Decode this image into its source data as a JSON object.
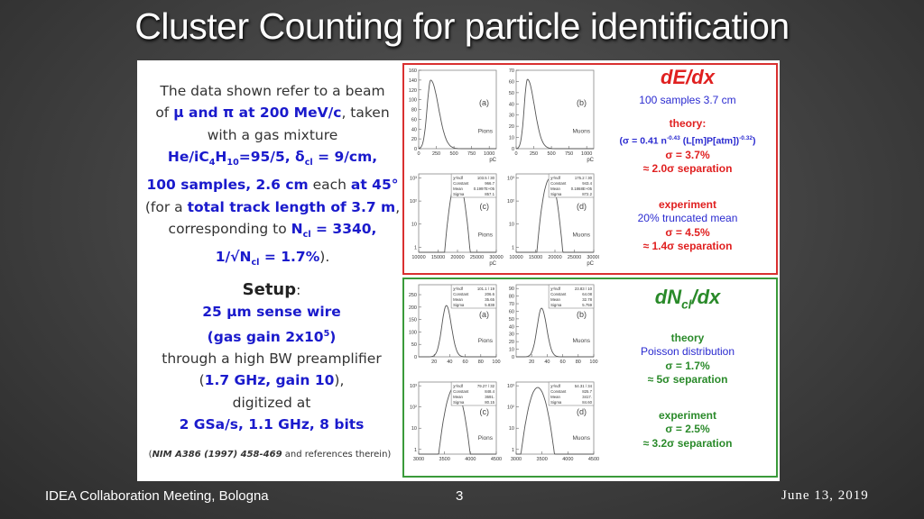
{
  "title": "Cluster Counting for particle identification",
  "intro": {
    "l1": "The data shown refer to a beam",
    "l2a": "of ",
    "l2b": "μ and π at 200 MeV/c",
    ",": ",",
    "l2c": ", taken",
    "l3": "with a gas mixture",
    "l4": "He/iC",
    "l4s1": "4",
    "l4b": "H",
    "l4s2": "10",
    "l4c": "=95/5, δ",
    "l4s3": "cl",
    "l4d": " = 9/cm,",
    "l5a": "100 samples, 2.6 cm",
    "l5b": " each ",
    "l5c": "at 45°",
    "l6a": "(for a ",
    "l6b": "total track length of 3.7 m",
    "l6c": ",",
    "l7a": "corresponding to ",
    "l7b": "N",
    "l7s": "cl",
    "l7c": " = 3340,",
    "l8a": "1/√N",
    "l8s": "cl",
    "l8b": " = 1.7%",
    "l8c": ")."
  },
  "setup": {
    "heading": "Setup",
    "colon": ":",
    "l1": "25 µm sense wire",
    "l2a": "(gas gain 2x10",
    "l2s": "5",
    "l2b": ")",
    "l3": "through a high BW preamplifier",
    "l4a": "(",
    "l4b": "1.7 GHz, gain 10",
    "l4c": "),",
    "l5": "digitized at",
    "l6": "2 GSa/s, 1.1 GHz, 8 bits"
  },
  "reference": {
    "bold": "NIM A386 (1997) 458-469",
    "rest": " and references therein)",
    "open": "("
  },
  "dedx": {
    "heading": "dE/dx",
    "samples": "100 samples 3.7 cm",
    "theory": "theory:",
    "formula": "(σ = 0.41 n",
    "f_sup1": "-0.43",
    "f_mid": " (L[m]P[atm])",
    "f_sup2": "-0.32",
    "f_end": ")",
    "sigma": "σ = 3.7%",
    "sep": "≈ 2.0σ separation",
    "experiment": "experiment",
    "method": "20% truncated mean",
    "exp_sigma": "σ = 4.5%",
    "exp_sep": "≈ 1.4σ separation"
  },
  "dncl": {
    "heading_a": "dN",
    "heading_sub": "cl",
    "heading_b": "/dx",
    "theory": "theory",
    "dist": "Poisson distribution",
    "sigma": "σ = 1.7%",
    "sep": "≈ 5σ separation",
    "experiment": "experiment",
    "exp_sigma": "σ = 2.5%",
    "exp_sep": "≈ 3.2σ separation"
  },
  "colors": {
    "red": "#d93030",
    "green": "#3a9a3a",
    "blue": "#1a1acc"
  },
  "plots": {
    "dedx": [
      {
        "label": "(a)",
        "particle": "Pions",
        "xunit": "pC",
        "log": false,
        "xlim": [
          0,
          1100
        ],
        "ylim": [
          0,
          160
        ],
        "xticks": [
          "0",
          "250",
          "500",
          "750",
          "1000"
        ],
        "xtickv": [
          0,
          250,
          500,
          750,
          1000
        ],
        "yticks": [
          "0",
          "20",
          "40",
          "60",
          "80",
          "100",
          "120",
          "140",
          "160"
        ],
        "ytickv": [
          0,
          20,
          40,
          60,
          80,
          100,
          120,
          140,
          160
        ],
        "peak": {
          "mu": 170,
          "sl": 50,
          "sr": 110,
          "h": 140
        },
        "stats": null
      },
      {
        "label": "(b)",
        "particle": "Muons",
        "xunit": "pC",
        "log": false,
        "xlim": [
          0,
          1100
        ],
        "ylim": [
          0,
          70
        ],
        "xticks": [
          "0",
          "250",
          "500",
          "750",
          "1000"
        ],
        "xtickv": [
          0,
          250,
          500,
          750,
          1000
        ],
        "yticks": [
          "0",
          "10",
          "20",
          "30",
          "40",
          "50",
          "60",
          "70"
        ],
        "ytickv": [
          0,
          10,
          20,
          30,
          40,
          50,
          60,
          70
        ],
        "peak": {
          "mu": 160,
          "sl": 45,
          "sr": 100,
          "h": 62
        },
        "stats": null
      },
      {
        "label": "(c)",
        "particle": "Pions",
        "xunit": "pC",
        "log": true,
        "xlim": [
          10000,
          30000
        ],
        "ylim": [
          0.6,
          1500
        ],
        "xticks": [
          "10000",
          "15000",
          "20000",
          "25000",
          "30000"
        ],
        "xtickv": [
          10000,
          15000,
          20000,
          25000,
          30000
        ],
        "yticks": [
          "1",
          "10",
          "10²",
          "10³"
        ],
        "ytickv": [
          1,
          10,
          100,
          1000
        ],
        "peak": {
          "mu": 19970,
          "sl": 857,
          "sr": 857,
          "h": 966.7
        },
        "stats": [
          [
            "χ²/ndf",
            "103.5 / 30"
          ],
          [
            "Constant",
            "966.7"
          ],
          [
            "Mean",
            "0.1997E+05"
          ],
          [
            "Sigma",
            "857.1"
          ]
        ]
      },
      {
        "label": "(d)",
        "particle": "Muons",
        "xunit": "pC",
        "log": true,
        "xlim": [
          10000,
          30000
        ],
        "ylim": [
          0.6,
          1500
        ],
        "xticks": [
          "10000",
          "15000",
          "20000",
          "25000",
          "30000"
        ],
        "xtickv": [
          10000,
          15000,
          20000,
          25000,
          30000
        ],
        "yticks": [
          "1",
          "10",
          "10²",
          "10³"
        ],
        "ytickv": [
          1,
          10,
          100,
          1000
        ],
        "peak": {
          "mu": 18680,
          "sl": 872,
          "sr": 872,
          "h": 943.4
        },
        "stats": [
          [
            "χ²/ndf",
            "175.2 / 30"
          ],
          [
            "Constant",
            "943.4"
          ],
          [
            "Mean",
            "0.1868E+05"
          ],
          [
            "Sigma",
            "872.2"
          ]
        ]
      }
    ],
    "dncl": [
      {
        "label": "(a)",
        "particle": "Pions",
        "xunit": "",
        "log": false,
        "xlim": [
          0,
          100
        ],
        "ylim": [
          0,
          290
        ],
        "xticks": [
          "20",
          "40",
          "60",
          "80",
          "100"
        ],
        "xtickv": [
          20,
          40,
          60,
          80,
          100
        ],
        "yticks": [
          "0",
          "50",
          "100",
          "150",
          "200",
          "250"
        ],
        "ytickv": [
          0,
          50,
          100,
          150,
          200,
          250
        ],
        "peak": {
          "mu": 35.65,
          "sl": 5.8,
          "sr": 6.5,
          "h": 206.6
        },
        "stats": [
          [
            "χ²/ndf",
            "101.1 / 19"
          ],
          [
            "Constant",
            "206.6"
          ],
          [
            "Mean",
            "35.65"
          ],
          [
            "Sigma",
            "5.838"
          ]
        ]
      },
      {
        "label": "(b)",
        "particle": "Muons",
        "xunit": "",
        "log": false,
        "xlim": [
          0,
          100
        ],
        "ylim": [
          0,
          95
        ],
        "xticks": [
          "20",
          "40",
          "60",
          "80",
          "100"
        ],
        "xtickv": [
          20,
          40,
          60,
          80,
          100
        ],
        "yticks": [
          "0",
          "10",
          "20",
          "30",
          "40",
          "50",
          "60",
          "70",
          "80",
          "90"
        ],
        "ytickv": [
          0,
          10,
          20,
          30,
          40,
          50,
          60,
          70,
          80,
          90
        ],
        "peak": {
          "mu": 32.78,
          "sl": 5.8,
          "sr": 6.5,
          "h": 64.08
        },
        "stats": [
          [
            "χ²/ndf",
            "23.83 / 10"
          ],
          [
            "Constant",
            "64.08"
          ],
          [
            "Mean",
            "32.78"
          ],
          [
            "Sigma",
            "5.759"
          ]
        ]
      },
      {
        "label": "(c)",
        "particle": "Pions",
        "xunit": "",
        "log": true,
        "xlim": [
          3000,
          4500
        ],
        "ylim": [
          0.6,
          1500
        ],
        "xticks": [
          "3000",
          "3500",
          "4000",
          "4500"
        ],
        "xtickv": [
          3000,
          3500,
          4000,
          4500
        ],
        "yticks": [
          "1",
          "10",
          "10²",
          "10³"
        ],
        "ytickv": [
          1,
          10,
          100,
          1000
        ],
        "peak": {
          "mu": 3691,
          "sl": 80,
          "sr": 80,
          "h": 848.4
        },
        "stats": [
          [
            "χ²/ndf",
            "79.27 / 32"
          ],
          [
            "Constant",
            "848.4"
          ],
          [
            "Mean",
            "3691."
          ],
          [
            "Sigma",
            "80.15"
          ]
        ]
      },
      {
        "label": "(d)",
        "particle": "Muons",
        "xunit": "",
        "log": true,
        "xlim": [
          3000,
          4500
        ],
        "ylim": [
          0.6,
          1500
        ],
        "xticks": [
          "3000",
          "3500",
          "4000",
          "4500"
        ],
        "xtickv": [
          3000,
          3500,
          4000,
          4500
        ],
        "yticks": [
          "1",
          "10",
          "10²",
          "10³"
        ],
        "ytickv": [
          1,
          10,
          100,
          1000
        ],
        "peak": {
          "mu": 3417,
          "sl": 85,
          "sr": 85,
          "h": 825.7
        },
        "stats": [
          [
            "χ²/ndf",
            "54.31 / 34"
          ],
          [
            "Constant",
            "825.7"
          ],
          [
            "Mean",
            "3417."
          ],
          [
            "Sigma",
            "84.60"
          ]
        ]
      }
    ]
  },
  "footer": {
    "meeting": "IDEA Collaboration Meeting, Bologna",
    "page": "3",
    "date": "June 13, 2019"
  }
}
